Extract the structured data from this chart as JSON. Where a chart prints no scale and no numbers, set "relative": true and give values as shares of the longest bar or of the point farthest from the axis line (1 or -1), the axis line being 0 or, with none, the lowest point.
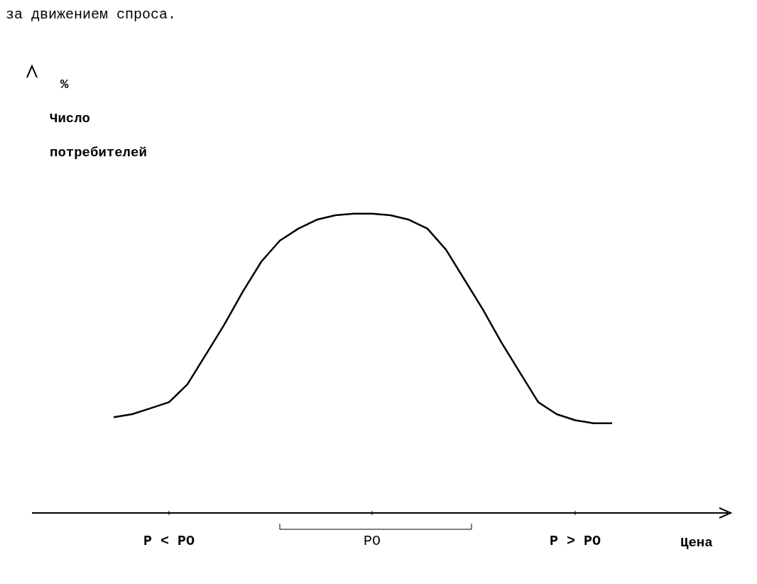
{
  "chart_data": {
    "type": "line",
    "relative": true,
    "xlabel": "Цена",
    "ylabel": "% Число потребителей",
    "annotations": [
      "за движением спроса."
    ],
    "categories": [
      null,
      null,
      null,
      "P < PO",
      null,
      null,
      null,
      null,
      null,
      null,
      null,
      null,
      null,
      null,
      "PO",
      null,
      null,
      null,
      null,
      null,
      null,
      null,
      null,
      null,
      null,
      "P > PO",
      null,
      null
    ],
    "series": [
      {
        "color": "#000000",
        "values": [
          0.32,
          0.33,
          0.35,
          0.37,
          0.43,
          0.53,
          0.63,
          0.74,
          0.84,
          0.91,
          0.95,
          0.98,
          0.995,
          1,
          1,
          0.995,
          0.98,
          0.95,
          0.88,
          0.78,
          0.68,
          0.57,
          0.47,
          0.37,
          0.33,
          0.31,
          0.3,
          0.3
        ]
      }
    ],
    "marker": "none",
    "line_style": "solid"
  }
}
